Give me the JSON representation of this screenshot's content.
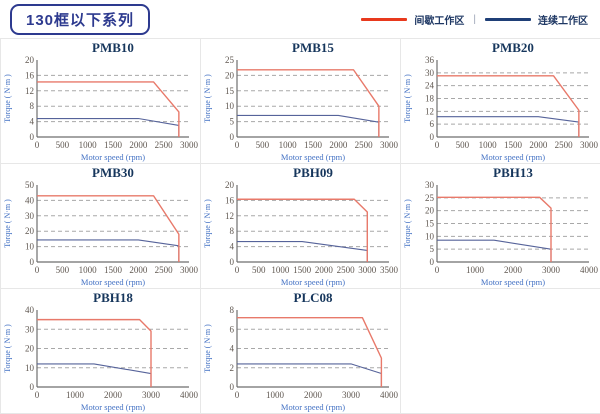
{
  "page": {
    "title": "130框以下系列",
    "legend": [
      {
        "label": "间歇工作区",
        "role": "intermittent"
      },
      {
        "label": "连续工作区",
        "role": "continuous"
      }
    ],
    "legend_separator": "|"
  },
  "colors": {
    "intermittent_line": "#e8796a",
    "continuous_line": "#56639a",
    "legend_red": "#e8391d",
    "legend_blue": "#1f3f77",
    "grid_line": "#a8a8a8",
    "axis_line": "#6e6e6e",
    "tick_text": "#5f5750",
    "axis_title_text": "#4472c4",
    "chart_title_text": "#16365c",
    "header_navy": "#2d3a8f",
    "cell_border": "#e7e7e7"
  },
  "chart_data": [
    {
      "type": "line",
      "title": "PMB10",
      "xlabel": "Motor speed (rpm)",
      "ylabel": "Torque ( N·m )",
      "xlim": [
        0,
        3000
      ],
      "xticks": [
        0,
        500,
        1000,
        1500,
        2000,
        2500,
        3000
      ],
      "ylim": [
        0,
        20
      ],
      "yticks": [
        0,
        4,
        8,
        12,
        16,
        20
      ],
      "grid": "dashed-horizontal",
      "legend_position": "none",
      "series": [
        {
          "name": "间歇工作区",
          "role": "intermittent",
          "points": [
            [
              0,
              14.3
            ],
            [
              2300,
              14.3
            ],
            [
              2800,
              6.5
            ],
            [
              2800,
              0
            ]
          ]
        },
        {
          "name": "连续工作区",
          "role": "continuous",
          "points": [
            [
              0,
              4.8
            ],
            [
              2000,
              4.8
            ],
            [
              2800,
              3
            ],
            [
              2800,
              0
            ]
          ]
        }
      ]
    },
    {
      "type": "line",
      "title": "PMB15",
      "xlabel": "Motor speed (rpm)",
      "ylabel": "Torque ( N·m )",
      "xlim": [
        0,
        3000
      ],
      "xticks": [
        0,
        500,
        1000,
        1500,
        2000,
        2500,
        3000
      ],
      "ylim": [
        0,
        25
      ],
      "yticks": [
        0,
        5,
        10,
        15,
        20,
        25
      ],
      "grid": "dashed-horizontal",
      "legend_position": "none",
      "series": [
        {
          "name": "间歇工作区",
          "role": "intermittent",
          "points": [
            [
              0,
              21.8
            ],
            [
              2300,
              21.8
            ],
            [
              2800,
              10
            ],
            [
              2800,
              0
            ]
          ]
        },
        {
          "name": "连续工作区",
          "role": "continuous",
          "points": [
            [
              0,
              7
            ],
            [
              2000,
              7
            ],
            [
              2800,
              4.8
            ],
            [
              2800,
              0
            ]
          ]
        }
      ]
    },
    {
      "type": "line",
      "title": "PMB20",
      "xlabel": "Motor speed (rpm)",
      "ylabel": "Torque ( N·m )",
      "xlim": [
        0,
        3000
      ],
      "xticks": [
        0,
        500,
        1000,
        1500,
        2000,
        2500,
        3000
      ],
      "ylim": [
        0,
        36
      ],
      "yticks": [
        0,
        6,
        12,
        18,
        24,
        30,
        36
      ],
      "grid": "dashed-horizontal",
      "legend_position": "none",
      "series": [
        {
          "name": "间歇工作区",
          "role": "intermittent",
          "points": [
            [
              0,
              28.6
            ],
            [
              2300,
              28.6
            ],
            [
              2800,
              12.5
            ],
            [
              2800,
              0
            ]
          ]
        },
        {
          "name": "连续工作区",
          "role": "continuous",
          "points": [
            [
              0,
              9.5
            ],
            [
              2000,
              9.5
            ],
            [
              2800,
              7
            ],
            [
              2800,
              0
            ]
          ]
        }
      ]
    },
    {
      "type": "line",
      "title": "PMB30",
      "xlabel": "Motor speed (rpm)",
      "ylabel": "Torque ( N·m )",
      "xlim": [
        0,
        3000
      ],
      "xticks": [
        0,
        500,
        1000,
        1500,
        2000,
        2500,
        3000
      ],
      "ylim": [
        0,
        50
      ],
      "yticks": [
        0,
        10,
        20,
        30,
        40,
        50
      ],
      "grid": "dashed-horizontal",
      "legend_position": "none",
      "series": [
        {
          "name": "间歇工作区",
          "role": "intermittent",
          "points": [
            [
              0,
              43
            ],
            [
              2300,
              43
            ],
            [
              2800,
              18
            ],
            [
              2800,
              0
            ]
          ]
        },
        {
          "name": "连续工作区",
          "role": "continuous",
          "points": [
            [
              0,
              14.3
            ],
            [
              2000,
              14.3
            ],
            [
              2800,
              10.5
            ],
            [
              2800,
              0
            ]
          ]
        }
      ]
    },
    {
      "type": "line",
      "title": "PBH09",
      "xlabel": "Motor speed (rpm)",
      "ylabel": "Torque ( N·m )",
      "xlim": [
        0,
        3500
      ],
      "xticks": [
        0,
        500,
        1000,
        1500,
        2000,
        2500,
        3000,
        3500
      ],
      "ylim": [
        0,
        20
      ],
      "yticks": [
        0,
        4,
        8,
        12,
        16,
        20
      ],
      "grid": "dashed-horizontal",
      "legend_position": "none",
      "series": [
        {
          "name": "间歇工作区",
          "role": "intermittent",
          "points": [
            [
              0,
              16.3
            ],
            [
              2700,
              16.3
            ],
            [
              3000,
              13
            ],
            [
              3000,
              0
            ]
          ]
        },
        {
          "name": "连续工作区",
          "role": "continuous",
          "points": [
            [
              0,
              5.3
            ],
            [
              1500,
              5.3
            ],
            [
              3000,
              3
            ],
            [
              3000,
              0
            ]
          ]
        }
      ]
    },
    {
      "type": "line",
      "title": "PBH13",
      "xlabel": "Motor speed (rpm)",
      "ylabel": "Torque ( N·m )",
      "xlim": [
        0,
        4000
      ],
      "xticks": [
        0,
        1000,
        2000,
        3000,
        4000
      ],
      "ylim": [
        0,
        30
      ],
      "yticks": [
        0,
        5,
        10,
        15,
        20,
        25,
        30
      ],
      "grid": "dashed-horizontal",
      "legend_position": "none",
      "series": [
        {
          "name": "间歇工作区",
          "role": "intermittent",
          "points": [
            [
              0,
              25.2
            ],
            [
              2700,
              25.2
            ],
            [
              3000,
              21
            ],
            [
              3000,
              0
            ]
          ]
        },
        {
          "name": "连续工作区",
          "role": "continuous",
          "points": [
            [
              0,
              8.5
            ],
            [
              1500,
              8.5
            ],
            [
              3000,
              5
            ],
            [
              3000,
              0
            ]
          ]
        }
      ]
    },
    {
      "type": "line",
      "title": "PBH18",
      "xlabel": "Motor speed (rpm)",
      "ylabel": "Torque ( N·m )",
      "xlim": [
        0,
        4000
      ],
      "xticks": [
        0,
        1000,
        2000,
        3000,
        4000
      ],
      "ylim": [
        0,
        40
      ],
      "yticks": [
        0,
        10,
        20,
        30,
        40
      ],
      "grid": "dashed-horizontal",
      "legend_position": "none",
      "series": [
        {
          "name": "间歇工作区",
          "role": "intermittent",
          "points": [
            [
              0,
              35
            ],
            [
              2700,
              35
            ],
            [
              3000,
              29
            ],
            [
              3000,
              0
            ]
          ]
        },
        {
          "name": "连续工作区",
          "role": "continuous",
          "points": [
            [
              0,
              12
            ],
            [
              1500,
              12
            ],
            [
              3000,
              7
            ],
            [
              3000,
              0
            ]
          ]
        }
      ]
    },
    {
      "type": "line",
      "title": "PLC08",
      "xlabel": "Motor speed (rpm)",
      "ylabel": "Torque ( N·m )",
      "xlim": [
        0,
        4000
      ],
      "xticks": [
        0,
        1000,
        2000,
        3000,
        4000
      ],
      "ylim": [
        0,
        8
      ],
      "yticks": [
        0,
        2,
        4,
        6,
        8
      ],
      "grid": "dashed-horizontal",
      "legend_position": "none",
      "series": [
        {
          "name": "间歇工作区",
          "role": "intermittent",
          "points": [
            [
              0,
              7.2
            ],
            [
              3300,
              7.2
            ],
            [
              3800,
              3
            ],
            [
              3800,
              0
            ]
          ]
        },
        {
          "name": "连续工作区",
          "role": "continuous",
          "points": [
            [
              0,
              2.4
            ],
            [
              3000,
              2.4
            ],
            [
              3800,
              1.4
            ],
            [
              3800,
              0
            ]
          ]
        }
      ]
    }
  ]
}
